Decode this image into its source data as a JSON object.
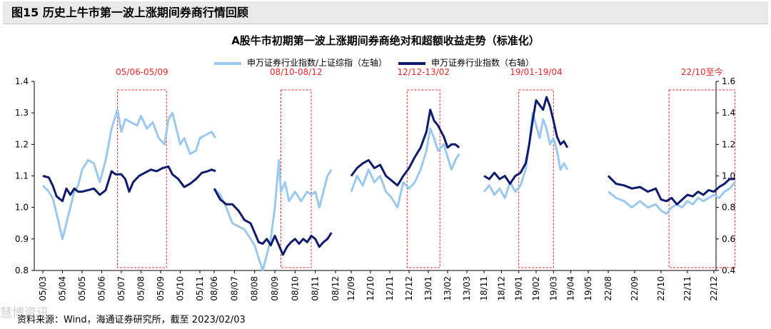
{
  "figure": {
    "title": "图15 历史上牛市第一波上涨期间券商行情回顾",
    "source": "资料来源：Wind，海通证券研究所，截至 2023/02/03",
    "watermark": "慧博资讯"
  },
  "chart_data": {
    "type": "line",
    "title": "A股牛市初期第一波上涨期间券商绝对和超额收益走势（标准化）",
    "legend_position": "top-center",
    "grid": false,
    "colors": {
      "relative": "#9bc8ef",
      "absolute": "#0f1a6e",
      "highlight": "#e8262b"
    },
    "y_left": {
      "label": "",
      "ylim": [
        0.8,
        1.4
      ],
      "ticks": [
        "0.8",
        "0.9",
        "1.0",
        "1.1",
        "1.2",
        "1.3",
        "1.4"
      ]
    },
    "y_right": {
      "label": "",
      "ylim": [
        0.4,
        1.6
      ],
      "ticks": [
        "0.4",
        "0.6",
        "0.8",
        "1.0",
        "1.2",
        "1.4",
        "1.6"
      ]
    },
    "series": [
      {
        "name": "申万证券行业指数/上证综指（左轴）",
        "axis": "left"
      },
      {
        "name": "申万证券行业指数（右轴）",
        "axis": "right"
      }
    ],
    "panels": [
      {
        "x_labels": [
          "05/03",
          "05/04",
          "05/05",
          "05/06",
          "05/07",
          "05/08",
          "05/09",
          "05/10",
          "05/11"
        ],
        "highlight": {
          "label": "05/06-05/09",
          "start": 3.8,
          "end": 6.3
        },
        "relative": [
          [
            0,
            1.07
          ],
          [
            0.3,
            1.05
          ],
          [
            0.5,
            1.03
          ],
          [
            0.7,
            0.98
          ],
          [
            1,
            0.9
          ],
          [
            1.2,
            0.95
          ],
          [
            1.4,
            1.0
          ],
          [
            1.6,
            1.05
          ],
          [
            1.8,
            1.07
          ],
          [
            2,
            1.12
          ],
          [
            2.3,
            1.15
          ],
          [
            2.6,
            1.14
          ],
          [
            2.9,
            1.08
          ],
          [
            3.2,
            1.15
          ],
          [
            3.5,
            1.25
          ],
          [
            3.8,
            1.31
          ],
          [
            4.0,
            1.24
          ],
          [
            4.2,
            1.28
          ],
          [
            4.5,
            1.27
          ],
          [
            4.8,
            1.26
          ],
          [
            5.0,
            1.29
          ],
          [
            5.3,
            1.25
          ],
          [
            5.6,
            1.27
          ],
          [
            5.9,
            1.22
          ],
          [
            6.2,
            1.2
          ],
          [
            6.4,
            1.28
          ],
          [
            6.6,
            1.3
          ],
          [
            6.8,
            1.25
          ],
          [
            7.0,
            1.2
          ],
          [
            7.2,
            1.22
          ],
          [
            7.5,
            1.17
          ],
          [
            7.8,
            1.18
          ],
          [
            8.0,
            1.22
          ],
          [
            8.3,
            1.23
          ],
          [
            8.6,
            1.24
          ],
          [
            8.8,
            1.22
          ]
        ],
        "absolute": [
          [
            0,
            1.0
          ],
          [
            0.3,
            0.99
          ],
          [
            0.5,
            0.94
          ],
          [
            0.7,
            0.87
          ],
          [
            1,
            0.84
          ],
          [
            1.2,
            0.92
          ],
          [
            1.4,
            0.88
          ],
          [
            1.6,
            0.92
          ],
          [
            1.8,
            0.9
          ],
          [
            2,
            0.9
          ],
          [
            2.3,
            0.91
          ],
          [
            2.6,
            0.92
          ],
          [
            2.9,
            0.88
          ],
          [
            3.2,
            0.91
          ],
          [
            3.5,
            1.03
          ],
          [
            3.7,
            1.01
          ],
          [
            4.0,
            1.01
          ],
          [
            4.2,
            0.98
          ],
          [
            4.4,
            0.9
          ],
          [
            4.6,
            0.96
          ],
          [
            4.9,
            1.0
          ],
          [
            5.2,
            1.02
          ],
          [
            5.5,
            1.04
          ],
          [
            5.8,
            1.03
          ],
          [
            6.1,
            1.05
          ],
          [
            6.4,
            1.06
          ],
          [
            6.6,
            1.01
          ],
          [
            6.9,
            0.98
          ],
          [
            7.2,
            0.93
          ],
          [
            7.5,
            0.95
          ],
          [
            7.8,
            0.98
          ],
          [
            8.1,
            1.02
          ],
          [
            8.4,
            1.03
          ],
          [
            8.6,
            1.04
          ],
          [
            8.8,
            1.03
          ]
        ]
      },
      {
        "x_labels": [
          "08/06",
          "08/07",
          "08/08",
          "08/09",
          "08/10",
          "08/11",
          "08/12"
        ],
        "highlight": {
          "label": "08/10-08/12",
          "start": 3.3,
          "end": 4.8
        },
        "relative": [
          [
            0,
            1.06
          ],
          [
            0.3,
            1.04
          ],
          [
            0.6,
            1.0
          ],
          [
            0.9,
            0.95
          ],
          [
            1.2,
            0.94
          ],
          [
            1.5,
            0.93
          ],
          [
            1.8,
            0.9
          ],
          [
            2.0,
            0.88
          ],
          [
            2.2,
            0.84
          ],
          [
            2.4,
            0.8
          ],
          [
            2.6,
            0.85
          ],
          [
            2.8,
            0.9
          ],
          [
            3.0,
            1.0
          ],
          [
            3.2,
            1.15
          ],
          [
            3.3,
            1.05
          ],
          [
            3.5,
            1.08
          ],
          [
            3.7,
            1.02
          ],
          [
            4.0,
            1.05
          ],
          [
            4.3,
            1.02
          ],
          [
            4.6,
            1.05
          ],
          [
            4.8,
            1.04
          ],
          [
            5.0,
            1.05
          ],
          [
            5.2,
            1.0
          ],
          [
            5.4,
            1.05
          ],
          [
            5.6,
            1.1
          ],
          [
            5.8,
            1.12
          ]
        ],
        "absolute": [
          [
            0,
            0.92
          ],
          [
            0.3,
            0.85
          ],
          [
            0.6,
            0.82
          ],
          [
            0.9,
            0.82
          ],
          [
            1.2,
            0.78
          ],
          [
            1.5,
            0.72
          ],
          [
            1.8,
            0.7
          ],
          [
            2.0,
            0.64
          ],
          [
            2.2,
            0.58
          ],
          [
            2.4,
            0.57
          ],
          [
            2.6,
            0.6
          ],
          [
            2.8,
            0.56
          ],
          [
            3.0,
            0.62
          ],
          [
            3.2,
            0.56
          ],
          [
            3.4,
            0.5
          ],
          [
            3.6,
            0.55
          ],
          [
            3.8,
            0.58
          ],
          [
            4.0,
            0.6
          ],
          [
            4.2,
            0.57
          ],
          [
            4.4,
            0.6
          ],
          [
            4.6,
            0.58
          ],
          [
            4.8,
            0.62
          ],
          [
            5.0,
            0.6
          ],
          [
            5.2,
            0.55
          ],
          [
            5.4,
            0.58
          ],
          [
            5.6,
            0.6
          ],
          [
            5.8,
            0.64
          ]
        ]
      },
      {
        "x_labels": [
          "12/09",
          "12/10",
          "12/11",
          "12/12",
          "13/01",
          "13/02",
          "13/03"
        ],
        "highlight": {
          "label": "12/12-13/02",
          "start": 2.9,
          "end": 4.6
        },
        "relative": [
          [
            0,
            1.05
          ],
          [
            0.3,
            1.1
          ],
          [
            0.6,
            1.07
          ],
          [
            0.9,
            1.12
          ],
          [
            1.2,
            1.08
          ],
          [
            1.5,
            1.1
          ],
          [
            1.8,
            1.05
          ],
          [
            2.1,
            1.03
          ],
          [
            2.4,
            1.0
          ],
          [
            2.7,
            1.08
          ],
          [
            3.0,
            1.06
          ],
          [
            3.3,
            1.08
          ],
          [
            3.6,
            1.12
          ],
          [
            3.9,
            1.18
          ],
          [
            4.1,
            1.25
          ],
          [
            4.3,
            1.22
          ],
          [
            4.5,
            1.18
          ],
          [
            4.8,
            1.2
          ],
          [
            5.0,
            1.16
          ],
          [
            5.2,
            1.12
          ],
          [
            5.4,
            1.15
          ],
          [
            5.6,
            1.17
          ]
        ],
        "absolute": [
          [
            0,
            1.0
          ],
          [
            0.3,
            1.05
          ],
          [
            0.6,
            1.08
          ],
          [
            0.9,
            1.1
          ],
          [
            1.2,
            1.05
          ],
          [
            1.5,
            1.07
          ],
          [
            1.8,
            1.0
          ],
          [
            2.1,
            0.97
          ],
          [
            2.4,
            0.94
          ],
          [
            2.7,
            1.0
          ],
          [
            3.0,
            1.05
          ],
          [
            3.3,
            1.12
          ],
          [
            3.6,
            1.18
          ],
          [
            3.9,
            1.28
          ],
          [
            4.1,
            1.42
          ],
          [
            4.3,
            1.35
          ],
          [
            4.5,
            1.32
          ],
          [
            4.8,
            1.25
          ],
          [
            5.0,
            1.18
          ],
          [
            5.2,
            1.2
          ],
          [
            5.4,
            1.2
          ],
          [
            5.6,
            1.18
          ]
        ]
      },
      {
        "x_labels": [
          "18/11",
          "18/12",
          "19/01",
          "19/02",
          "19/03",
          "19/04",
          "19/05"
        ],
        "highlight": {
          "label": "19/01-19/04",
          "start": 2.0,
          "end": 4.0
        },
        "relative": [
          [
            0,
            1.05
          ],
          [
            0.3,
            1.07
          ],
          [
            0.6,
            1.04
          ],
          [
            0.9,
            1.06
          ],
          [
            1.2,
            1.03
          ],
          [
            1.5,
            1.08
          ],
          [
            1.8,
            1.05
          ],
          [
            2.1,
            1.07
          ],
          [
            2.4,
            1.12
          ],
          [
            2.6,
            1.2
          ],
          [
            2.8,
            1.3
          ],
          [
            3.0,
            1.26
          ],
          [
            3.2,
            1.22
          ],
          [
            3.4,
            1.28
          ],
          [
            3.6,
            1.25
          ],
          [
            3.8,
            1.2
          ],
          [
            4.0,
            1.22
          ],
          [
            4.2,
            1.18
          ],
          [
            4.4,
            1.12
          ],
          [
            4.6,
            1.14
          ],
          [
            4.8,
            1.12
          ]
        ],
        "absolute": [
          [
            0,
            1.0
          ],
          [
            0.3,
            0.98
          ],
          [
            0.6,
            1.02
          ],
          [
            0.9,
            0.98
          ],
          [
            1.2,
            1.0
          ],
          [
            1.5,
            0.95
          ],
          [
            1.8,
            1.0
          ],
          [
            2.1,
            1.02
          ],
          [
            2.4,
            1.08
          ],
          [
            2.6,
            1.2
          ],
          [
            2.8,
            1.35
          ],
          [
            3.0,
            1.48
          ],
          [
            3.2,
            1.45
          ],
          [
            3.4,
            1.42
          ],
          [
            3.6,
            1.5
          ],
          [
            3.8,
            1.44
          ],
          [
            4.0,
            1.35
          ],
          [
            4.2,
            1.25
          ],
          [
            4.4,
            1.2
          ],
          [
            4.6,
            1.22
          ],
          [
            4.8,
            1.18
          ]
        ]
      },
      {
        "x_labels": [
          "22/08",
          "22/09",
          "22/10",
          "22/11",
          "22/12"
        ],
        "highlight": {
          "label": "22/10至今",
          "start": 2.3,
          "end": 4.8
        },
        "relative": [
          [
            0,
            1.05
          ],
          [
            0.3,
            1.03
          ],
          [
            0.6,
            1.02
          ],
          [
            0.9,
            1.0
          ],
          [
            1.2,
            1.02
          ],
          [
            1.5,
            1.0
          ],
          [
            1.8,
            1.01
          ],
          [
            2.0,
            0.99
          ],
          [
            2.2,
            0.98
          ],
          [
            2.4,
            1.0
          ],
          [
            2.6,
            1.01
          ],
          [
            2.8,
            1.0
          ],
          [
            3.0,
            1.02
          ],
          [
            3.2,
            1.01
          ],
          [
            3.4,
            1.03
          ],
          [
            3.6,
            1.02
          ],
          [
            3.8,
            1.03
          ],
          [
            4.0,
            1.04
          ],
          [
            4.2,
            1.03
          ],
          [
            4.4,
            1.05
          ],
          [
            4.6,
            1.06
          ],
          [
            4.8,
            1.08
          ]
        ],
        "absolute": [
          [
            0,
            1.0
          ],
          [
            0.3,
            0.95
          ],
          [
            0.6,
            0.94
          ],
          [
            0.9,
            0.92
          ],
          [
            1.2,
            0.93
          ],
          [
            1.5,
            0.9
          ],
          [
            1.8,
            0.92
          ],
          [
            2.0,
            0.85
          ],
          [
            2.2,
            0.84
          ],
          [
            2.4,
            0.86
          ],
          [
            2.6,
            0.82
          ],
          [
            2.8,
            0.85
          ],
          [
            3.0,
            0.88
          ],
          [
            3.2,
            0.87
          ],
          [
            3.4,
            0.9
          ],
          [
            3.6,
            0.88
          ],
          [
            3.8,
            0.91
          ],
          [
            4.0,
            0.9
          ],
          [
            4.2,
            0.93
          ],
          [
            4.4,
            0.95
          ],
          [
            4.6,
            0.98
          ],
          [
            4.8,
            0.98
          ]
        ]
      }
    ]
  }
}
